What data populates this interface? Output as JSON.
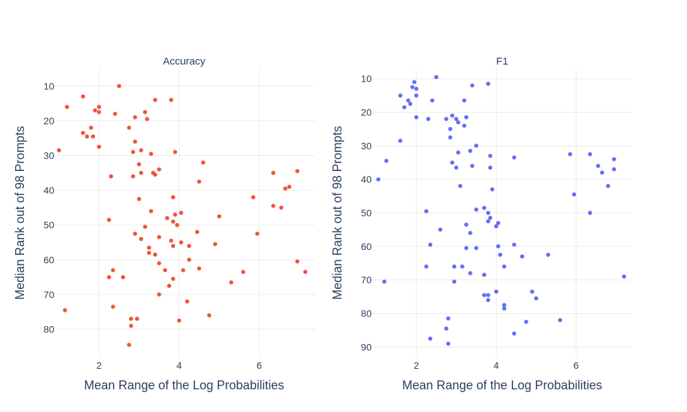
{
  "chart_data": [
    {
      "type": "scatter",
      "title": "Accuracy",
      "xlabel": "Mean Range of the Log Probabilities",
      "ylabel": "Median Rank out of 98 Prompts",
      "xlim": [
        0.9,
        7.4
      ],
      "ylim": [
        88,
        5
      ],
      "y_reversed": true,
      "xticks": [
        2,
        4,
        6
      ],
      "yticks": [
        10,
        20,
        30,
        40,
        50,
        60,
        70,
        80
      ],
      "grid": true,
      "marker_color": "#EF553B",
      "points": [
        [
          2.5,
          10
        ],
        [
          1.6,
          13
        ],
        [
          1.2,
          16
        ],
        [
          2.0,
          16
        ],
        [
          1.9,
          17
        ],
        [
          2.0,
          17.5
        ],
        [
          2.4,
          18
        ],
        [
          3.15,
          17.5
        ],
        [
          1.6,
          23.5
        ],
        [
          1.7,
          24.5
        ],
        [
          1.8,
          22
        ],
        [
          1.85,
          24.5
        ],
        [
          2.75,
          22
        ],
        [
          2.9,
          19
        ],
        [
          3.2,
          19.5
        ],
        [
          3.4,
          14
        ],
        [
          3.8,
          14
        ],
        [
          1.0,
          28.5
        ],
        [
          2.0,
          27.5
        ],
        [
          2.9,
          26
        ],
        [
          2.85,
          29
        ],
        [
          3.05,
          28.5
        ],
        [
          3.3,
          29.5
        ],
        [
          3.9,
          29
        ],
        [
          4.6,
          32
        ],
        [
          3.0,
          32.5
        ],
        [
          2.3,
          36
        ],
        [
          2.85,
          36
        ],
        [
          3.05,
          35
        ],
        [
          3.35,
          35
        ],
        [
          3.4,
          35.5
        ],
        [
          3.5,
          34
        ],
        [
          4.5,
          37.5
        ],
        [
          6.35,
          35
        ],
        [
          6.95,
          34.5
        ],
        [
          6.65,
          39.5
        ],
        [
          6.75,
          39
        ],
        [
          5.85,
          42
        ],
        [
          6.35,
          44.5
        ],
        [
          6.55,
          45
        ],
        [
          3.0,
          42.5
        ],
        [
          3.85,
          42
        ],
        [
          3.3,
          46
        ],
        [
          3.7,
          48
        ],
        [
          3.85,
          49
        ],
        [
          3.9,
          47
        ],
        [
          4.05,
          46.5
        ],
        [
          5.0,
          47.5
        ],
        [
          2.25,
          48.5
        ],
        [
          2.9,
          52.5
        ],
        [
          3.15,
          50.5
        ],
        [
          3.95,
          50
        ],
        [
          4.45,
          52
        ],
        [
          5.95,
          52.5
        ],
        [
          3.05,
          54
        ],
        [
          3.25,
          56.5
        ],
        [
          3.5,
          53.5
        ],
        [
          3.8,
          54.5
        ],
        [
          3.85,
          56
        ],
        [
          4.05,
          55
        ],
        [
          4.25,
          56
        ],
        [
          4.9,
          55.5
        ],
        [
          3.25,
          58
        ],
        [
          3.4,
          58.5
        ],
        [
          4.25,
          60
        ],
        [
          3.5,
          61
        ],
        [
          2.35,
          63
        ],
        [
          3.65,
          63
        ],
        [
          4.1,
          63
        ],
        [
          4.5,
          62.5
        ],
        [
          5.6,
          63.5
        ],
        [
          6.95,
          60.5
        ],
        [
          7.15,
          63.5
        ],
        [
          2.25,
          65
        ],
        [
          2.6,
          65
        ],
        [
          3.85,
          65.5
        ],
        [
          3.75,
          67.5
        ],
        [
          5.3,
          66.5
        ],
        [
          3.5,
          70
        ],
        [
          4.2,
          72
        ],
        [
          2.35,
          73.5
        ],
        [
          1.15,
          74.5
        ],
        [
          4.75,
          76
        ],
        [
          2.8,
          77
        ],
        [
          2.95,
          77
        ],
        [
          4.0,
          77.5
        ],
        [
          2.8,
          79
        ],
        [
          2.75,
          84.5
        ]
      ]
    },
    {
      "type": "scatter",
      "title": "F1",
      "xlabel": "Mean Range of the Log Probabilities",
      "ylabel": "Median Rank out of 98 Prompts",
      "xlim": [
        0.9,
        7.4
      ],
      "ylim": [
        93,
        7
      ],
      "y_reversed": true,
      "xticks": [
        2,
        4,
        6
      ],
      "yticks": [
        10,
        20,
        30,
        40,
        50,
        60,
        70,
        80,
        90
      ],
      "grid": true,
      "marker_color": "#636EFA",
      "points": [
        [
          2.5,
          9.5
        ],
        [
          1.95,
          11
        ],
        [
          3.8,
          11.5
        ],
        [
          3.4,
          12
        ],
        [
          1.9,
          12.5
        ],
        [
          2.0,
          13
        ],
        [
          1.6,
          15
        ],
        [
          2.0,
          15
        ],
        [
          1.8,
          16.5
        ],
        [
          2.4,
          16.5
        ],
        [
          3.2,
          16.5
        ],
        [
          1.85,
          17.5
        ],
        [
          1.7,
          18.5
        ],
        [
          2.0,
          21.5
        ],
        [
          2.3,
          22
        ],
        [
          2.75,
          22
        ],
        [
          2.9,
          21
        ],
        [
          3.0,
          22
        ],
        [
          3.05,
          23
        ],
        [
          3.2,
          24
        ],
        [
          3.25,
          21.5
        ],
        [
          2.85,
          25
        ],
        [
          2.85,
          27.5
        ],
        [
          1.6,
          28.5
        ],
        [
          3.5,
          30
        ],
        [
          3.05,
          32
        ],
        [
          3.35,
          31.5
        ],
        [
          3.85,
          33
        ],
        [
          4.45,
          33.5
        ],
        [
          1.25,
          34.5
        ],
        [
          2.9,
          35
        ],
        [
          3.0,
          36.5
        ],
        [
          3.4,
          36
        ],
        [
          3.85,
          36.5
        ],
        [
          5.85,
          32.5
        ],
        [
          6.35,
          32.5
        ],
        [
          6.95,
          34
        ],
        [
          6.55,
          36
        ],
        [
          6.65,
          38
        ],
        [
          6.95,
          37
        ],
        [
          6.8,
          42
        ],
        [
          5.95,
          44.5
        ],
        [
          1.05,
          40
        ],
        [
          3.1,
          42
        ],
        [
          3.9,
          43
        ],
        [
          3.5,
          49
        ],
        [
          3.7,
          48.5
        ],
        [
          3.8,
          50
        ],
        [
          3.8,
          52.5
        ],
        [
          3.85,
          51.5
        ],
        [
          4.05,
          53
        ],
        [
          4.0,
          54
        ],
        [
          2.25,
          49.5
        ],
        [
          2.6,
          55
        ],
        [
          3.25,
          53.5
        ],
        [
          3.35,
          56
        ],
        [
          6.35,
          50
        ],
        [
          4.45,
          59.5
        ],
        [
          2.35,
          59.5
        ],
        [
          3.25,
          60.5
        ],
        [
          3.5,
          60.5
        ],
        [
          4.05,
          60
        ],
        [
          4.1,
          62.5
        ],
        [
          4.65,
          63
        ],
        [
          5.3,
          62.5
        ],
        [
          2.25,
          66
        ],
        [
          2.95,
          66
        ],
        [
          3.15,
          66
        ],
        [
          4.2,
          66
        ],
        [
          3.35,
          68
        ],
        [
          3.7,
          68.5
        ],
        [
          2.95,
          70.5
        ],
        [
          1.2,
          70.5
        ],
        [
          7.2,
          69
        ],
        [
          4.0,
          73.5
        ],
        [
          3.7,
          74.5
        ],
        [
          3.8,
          74.5
        ],
        [
          3.8,
          76
        ],
        [
          4.9,
          73.5
        ],
        [
          5.0,
          75.5
        ],
        [
          4.2,
          77.5
        ],
        [
          4.2,
          78.5
        ],
        [
          2.8,
          81.5
        ],
        [
          4.75,
          82.5
        ],
        [
          5.6,
          82
        ],
        [
          2.75,
          84.5
        ],
        [
          4.45,
          86
        ],
        [
          2.35,
          87.5
        ],
        [
          2.8,
          89
        ]
      ]
    }
  ]
}
